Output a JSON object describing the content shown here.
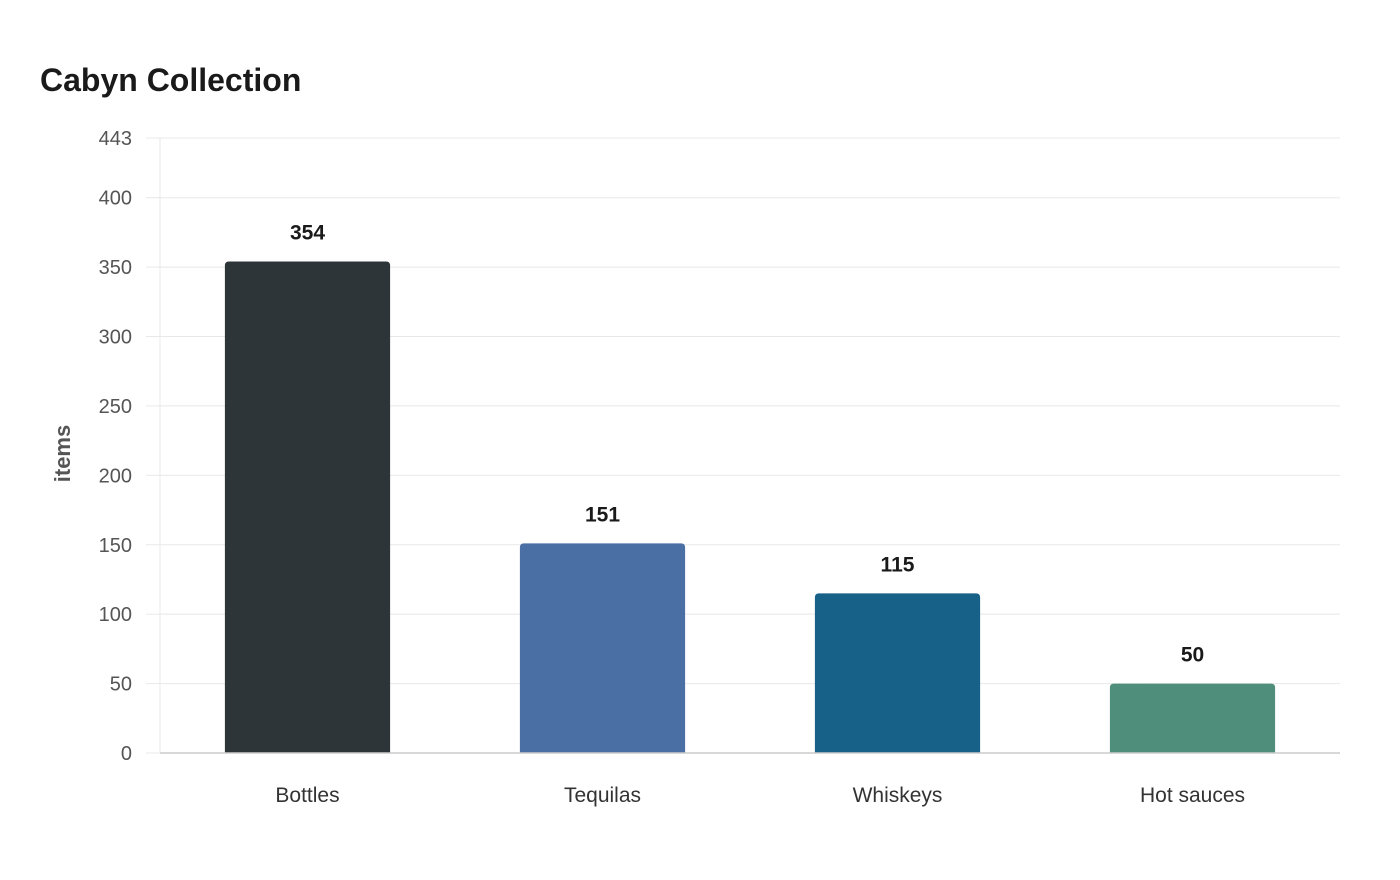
{
  "chart_data": {
    "type": "bar",
    "title": "Cabyn Collection",
    "xlabel": "",
    "ylabel": "items",
    "categories": [
      "Bottles",
      "Tequilas",
      "Whiskeys",
      "Hot sauces"
    ],
    "values": [
      354,
      151,
      115,
      50
    ],
    "colors": [
      "#2e3538",
      "#4a6fa5",
      "#176189",
      "#4e8e7b"
    ],
    "ylim": [
      0,
      443
    ],
    "yticks": [
      0,
      50,
      100,
      150,
      200,
      250,
      300,
      350,
      400,
      443
    ],
    "grid": true,
    "legend": "none"
  }
}
